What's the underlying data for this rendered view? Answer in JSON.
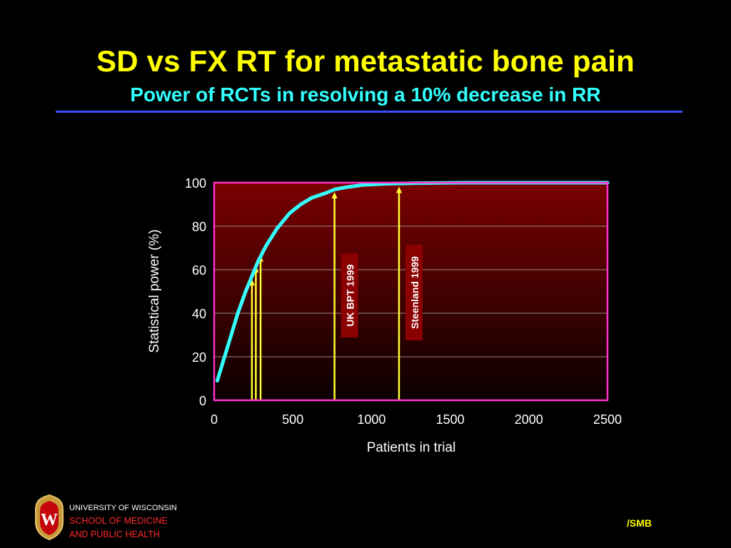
{
  "slide": {
    "title": "SD vs FX RT for metastatic bone pain",
    "subtitle": "Power of RCTs in resolving a 10% decrease in RR",
    "footer": {
      "institution": "UNIVERSITY OF WISCONSIN",
      "school_line1": "SCHOOL OF MEDICINE",
      "school_line2": "AND PUBLIC HEALTH",
      "logo_letter": "W",
      "credit": "/SMB"
    }
  },
  "colors": {
    "title": "#ffff00",
    "subtitle": "#33ffff",
    "rule": "#3b4fff",
    "plot_border": "#ff33cc",
    "plot_top": "#7a0000",
    "plot_bottom": "#0a0000",
    "curve": "#33ffff",
    "markers": "#ffff33",
    "label_box": "#8b0000",
    "school_text": "#ff2a2a"
  },
  "chart_data": {
    "type": "line",
    "title": "",
    "xlabel": "Patients in trial",
    "ylabel": "Statistical power (%)",
    "xlim": [
      0,
      2500
    ],
    "ylim": [
      0,
      100
    ],
    "xticks": [
      "0",
      "500",
      "1000",
      "1500",
      "2000",
      "2500"
    ],
    "yticks": [
      "0",
      "20",
      "40",
      "60",
      "80",
      "100"
    ],
    "grid": "horizontal",
    "series": [
      {
        "name": "",
        "x": [
          20,
          100,
          150,
          200,
          240,
          280,
          330,
          400,
          480,
          550,
          620,
          700,
          770,
          850,
          950,
          1100,
          1300,
          1600,
          2000,
          2500
        ],
        "y": [
          9,
          28,
          40,
          50,
          57,
          64,
          71,
          79,
          86,
          90,
          93,
          95,
          97,
          98,
          99,
          99.5,
          99.8,
          100,
          100,
          100
        ]
      }
    ],
    "markers": [
      {
        "x": 240,
        "y": 57,
        "label": ""
      },
      {
        "x": 265,
        "y": 63,
        "label": ""
      },
      {
        "x": 295,
        "y": 68,
        "label": ""
      },
      {
        "x": 765,
        "y": 97,
        "label": "UK BPT 1999"
      },
      {
        "x": 1175,
        "y": 99.5,
        "label": "Steenland 1999"
      }
    ]
  }
}
